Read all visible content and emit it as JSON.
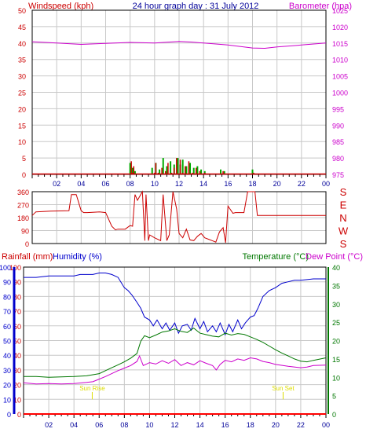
{
  "header": {
    "left_title": "Windspeed (kph)",
    "center_title": "24 hour graph day : 31 July 2012",
    "right_title": "Barometer (hpa)"
  },
  "bottom_header": {
    "rainfall": "Rainfall (mm)",
    "humidity": "Humidity (%)",
    "temperature": "Temperature (°C)",
    "dewpoint": "Dew Point (°C)"
  },
  "annotations": {
    "sunrise": "Sun Rise",
    "sunset": "Sun Set"
  },
  "colors": {
    "border": "#000000",
    "grid": "#c8c8c8",
    "wind_axis": "#cc0000",
    "baro": "#cc00cc",
    "wind_gust": "#00aa00",
    "wind_avg": "#cc0000",
    "direction": "#cc0000",
    "rain": "#ff0000",
    "humidity": "#0000cc",
    "temperature": "#007700",
    "dewpoint": "#cc00cc",
    "sun_marker": "#dddd00"
  },
  "chart_data": [
    {
      "type": "line",
      "title": "24 hour graph day : 31 July 2012",
      "x_ticks": [
        "02",
        "04",
        "06",
        "08",
        "10",
        "12",
        "14",
        "16",
        "18",
        "20",
        "22",
        "00"
      ],
      "x_range_hours": [
        0,
        24
      ],
      "y_left": {
        "label": "Windspeed (kph)",
        "range": [
          0,
          50
        ],
        "ticks": [
          0,
          5,
          10,
          15,
          20,
          25,
          30,
          35,
          40,
          45,
          50
        ]
      },
      "y_right": {
        "label": "Barometer (hpa)",
        "range": [
          975,
          1025
        ],
        "ticks": [
          975,
          980,
          985,
          990,
          995,
          1000,
          1005,
          1010,
          1015,
          1020,
          1025
        ]
      },
      "grid": true,
      "barometer": {
        "name": "Barometer",
        "x": [
          0,
          2,
          4,
          6,
          8,
          10,
          12,
          13,
          14,
          16,
          18,
          19,
          20,
          22,
          24
        ],
        "y": [
          1015.4,
          1015.0,
          1014.6,
          1014.9,
          1015.2,
          1015.0,
          1015.5,
          1015.3,
          1015.0,
          1014.4,
          1013.5,
          1013.4,
          1013.8,
          1014.4,
          1015.0
        ]
      },
      "wind_gust": {
        "name": "Gust",
        "x": [
          8.0,
          8.2,
          8.4,
          9.8,
          10.1,
          10.4,
          10.7,
          11.0,
          11.3,
          11.6,
          11.9,
          12.1,
          12.3,
          12.6,
          12.9,
          13.2,
          13.5,
          13.8,
          14.1,
          15.4,
          15.7,
          18.0
        ],
        "y": [
          3.5,
          2.0,
          1.0,
          2.0,
          3.5,
          1.5,
          5.0,
          2.5,
          4.0,
          3.0,
          5.0,
          3.0,
          4.5,
          2.5,
          3.5,
          2.0,
          2.5,
          1.5,
          1.0,
          1.5,
          1.0,
          1.5
        ]
      },
      "wind_avg": {
        "name": "Average",
        "x": [
          8.0,
          8.1,
          8.2,
          9.9,
          10.0,
          10.2,
          10.5,
          10.8,
          11.0,
          11.3,
          11.5,
          11.7,
          12.0,
          12.2,
          12.4,
          12.7,
          13.0,
          13.3,
          13.6,
          14.0,
          15.5,
          18.0
        ],
        "y": [
          4.0,
          0.5,
          2.5,
          0.5,
          3.5,
          0.5,
          2.0,
          1.0,
          3.5,
          0.5,
          2.0,
          5.0,
          4.5,
          0.5,
          2.5,
          4.0,
          0.5,
          2.0,
          1.0,
          0.5,
          1.0,
          0.5
        ]
      }
    },
    {
      "type": "line",
      "title": "",
      "x_range_hours": [
        0,
        24
      ],
      "y_left": {
        "label": "",
        "range": [
          0,
          360
        ],
        "ticks": [
          0,
          90,
          180,
          270,
          360
        ]
      },
      "y_right_labels": [
        "S",
        "E",
        "N",
        "W",
        "S"
      ],
      "grid": true,
      "wind_direction": {
        "name": "Wind Direction",
        "x": [
          0,
          0.3,
          1.5,
          3.0,
          3.2,
          3.6,
          4.0,
          4.2,
          4.5,
          5.5,
          6.0,
          6.5,
          6.8,
          7.0,
          7.6,
          8.0,
          8.2,
          8.4,
          8.6,
          9.0,
          9.2,
          9.3,
          9.5,
          9.6,
          10.0,
          10.5,
          10.7,
          11.0,
          11.2,
          11.5,
          11.8,
          12.0,
          12.3,
          12.6,
          12.9,
          13.2,
          13.5,
          13.8,
          14.1,
          14.4,
          14.7,
          15.0,
          15.3,
          15.6,
          15.8,
          16.0,
          16.4,
          16.6,
          17.3,
          17.6,
          18.2,
          18.4,
          24.0
        ],
        "y": [
          195,
          220,
          225,
          228,
          340,
          340,
          228,
          215,
          215,
          220,
          215,
          120,
          95,
          100,
          100,
          125,
          120,
          340,
          300,
          360,
          20,
          340,
          20,
          60,
          40,
          20,
          340,
          20,
          60,
          360,
          240,
          70,
          40,
          100,
          25,
          20,
          50,
          70,
          40,
          30,
          20,
          10,
          80,
          110,
          5,
          260,
          210,
          215,
          215,
          360,
          360,
          195,
          195
        ]
      }
    },
    {
      "type": "line",
      "title": "",
      "x_ticks": [
        "02",
        "04",
        "06",
        "08",
        "10",
        "12",
        "14",
        "16",
        "18",
        "20",
        "22",
        "00"
      ],
      "x_range_hours": [
        0,
        24
      ],
      "y_left_outer": {
        "label": "Rainfall (mm)",
        "range": [
          0,
          100
        ],
        "ticks": [
          0,
          10,
          20,
          30,
          40,
          50,
          60,
          70,
          80,
          90,
          100
        ]
      },
      "y_left_inner": {
        "label": "Humidity (%)",
        "range": [
          0,
          100
        ],
        "ticks": [
          0,
          10,
          20,
          30,
          40,
          50,
          60,
          70,
          80,
          90,
          100
        ]
      },
      "y_right": {
        "label": "Temperature (°C)",
        "range": [
          0,
          40
        ],
        "ticks": [
          0,
          5,
          10,
          15,
          20,
          25,
          30,
          35,
          40
        ]
      },
      "grid": true,
      "series": [
        {
          "name": "Humidity",
          "axis": "humidity",
          "x": [
            0,
            1,
            2,
            3,
            4,
            4.5,
            5,
            5.5,
            6,
            6.5,
            7,
            7.5,
            8,
            8.3,
            8.6,
            9,
            9.3,
            9.6,
            10,
            10.3,
            10.6,
            11,
            11.3,
            11.6,
            12,
            12.3,
            12.6,
            13,
            13.3,
            13.6,
            14,
            14.3,
            14.6,
            15,
            15.3,
            15.6,
            16,
            16.3,
            16.6,
            17,
            17.3,
            17.6,
            18,
            18.3,
            18.6,
            19,
            19.5,
            20,
            20.5,
            21,
            21.5,
            22,
            23,
            24
          ],
          "y": [
            93,
            93,
            94,
            94,
            94,
            95,
            95,
            95,
            96,
            96,
            95,
            93,
            86,
            84,
            81,
            76,
            72,
            66,
            64,
            60,
            64,
            58,
            62,
            57,
            62,
            55,
            60,
            61,
            57,
            65,
            58,
            63,
            56,
            60,
            56,
            62,
            54,
            61,
            56,
            64,
            58,
            62,
            66,
            67,
            72,
            80,
            84,
            86,
            89,
            90,
            91,
            91,
            92,
            92
          ]
        },
        {
          "name": "Temperature",
          "axis": "temperature",
          "x": [
            0,
            1,
            2,
            3,
            4,
            5,
            6,
            6.5,
            7,
            7.5,
            8,
            8.5,
            9,
            9.3,
            9.6,
            10,
            10.5,
            11,
            11.5,
            12,
            12.5,
            13,
            13.5,
            14,
            14.5,
            15,
            15.5,
            16,
            16.5,
            17,
            17.5,
            18,
            18.5,
            19,
            19.5,
            20,
            20.5,
            21,
            21.5,
            22,
            22.5,
            23,
            24
          ],
          "y": [
            10.2,
            10.2,
            10.0,
            10.1,
            10.2,
            10.4,
            11.0,
            11.8,
            12.6,
            13.4,
            14.2,
            15.2,
            16.5,
            19.8,
            21.3,
            20.8,
            21.5,
            22.3,
            22.6,
            23.2,
            22.5,
            22.2,
            23.4,
            22.0,
            21.6,
            21.2,
            21.0,
            22.0,
            21.5,
            21.9,
            21.7,
            21.0,
            20.3,
            19.5,
            18.5,
            17.5,
            16.6,
            15.8,
            15.0,
            14.4,
            14.2,
            14.6,
            15.3
          ]
        },
        {
          "name": "Dew Point",
          "axis": "temperature",
          "x": [
            0,
            1,
            2,
            3,
            4,
            5,
            5.5,
            6,
            6.5,
            7,
            7.5,
            8,
            8.5,
            9,
            9.2,
            9.5,
            10,
            10.5,
            11,
            11.5,
            12,
            12.5,
            13,
            13.5,
            14,
            14.5,
            15,
            15.3,
            15.6,
            16,
            16.5,
            17,
            17.5,
            18,
            18.5,
            19,
            19.5,
            20,
            21,
            22,
            22.5,
            23,
            24
          ],
          "y": [
            8.5,
            8.2,
            8.3,
            8.2,
            8.3,
            8.6,
            8.8,
            9.5,
            10.2,
            11.0,
            11.8,
            12.5,
            13.2,
            14.3,
            15.8,
            13.2,
            14.0,
            13.6,
            14.5,
            13.8,
            14.8,
            13.2,
            14.0,
            13.4,
            14.5,
            13.8,
            13.2,
            12.0,
            13.5,
            14.6,
            14.2,
            15.0,
            14.6,
            15.3,
            15.0,
            14.3,
            14.0,
            13.5,
            13.0,
            12.6,
            12.8,
            13.2,
            13.3
          ]
        },
        {
          "name": "Rainfall",
          "axis": "rainfall",
          "x": [
            0,
            24
          ],
          "y": [
            0,
            0
          ]
        }
      ],
      "markers": [
        {
          "label": "Sun Rise",
          "x": 5.45
        },
        {
          "label": "Sun Set",
          "x": 20.6
        }
      ]
    }
  ]
}
